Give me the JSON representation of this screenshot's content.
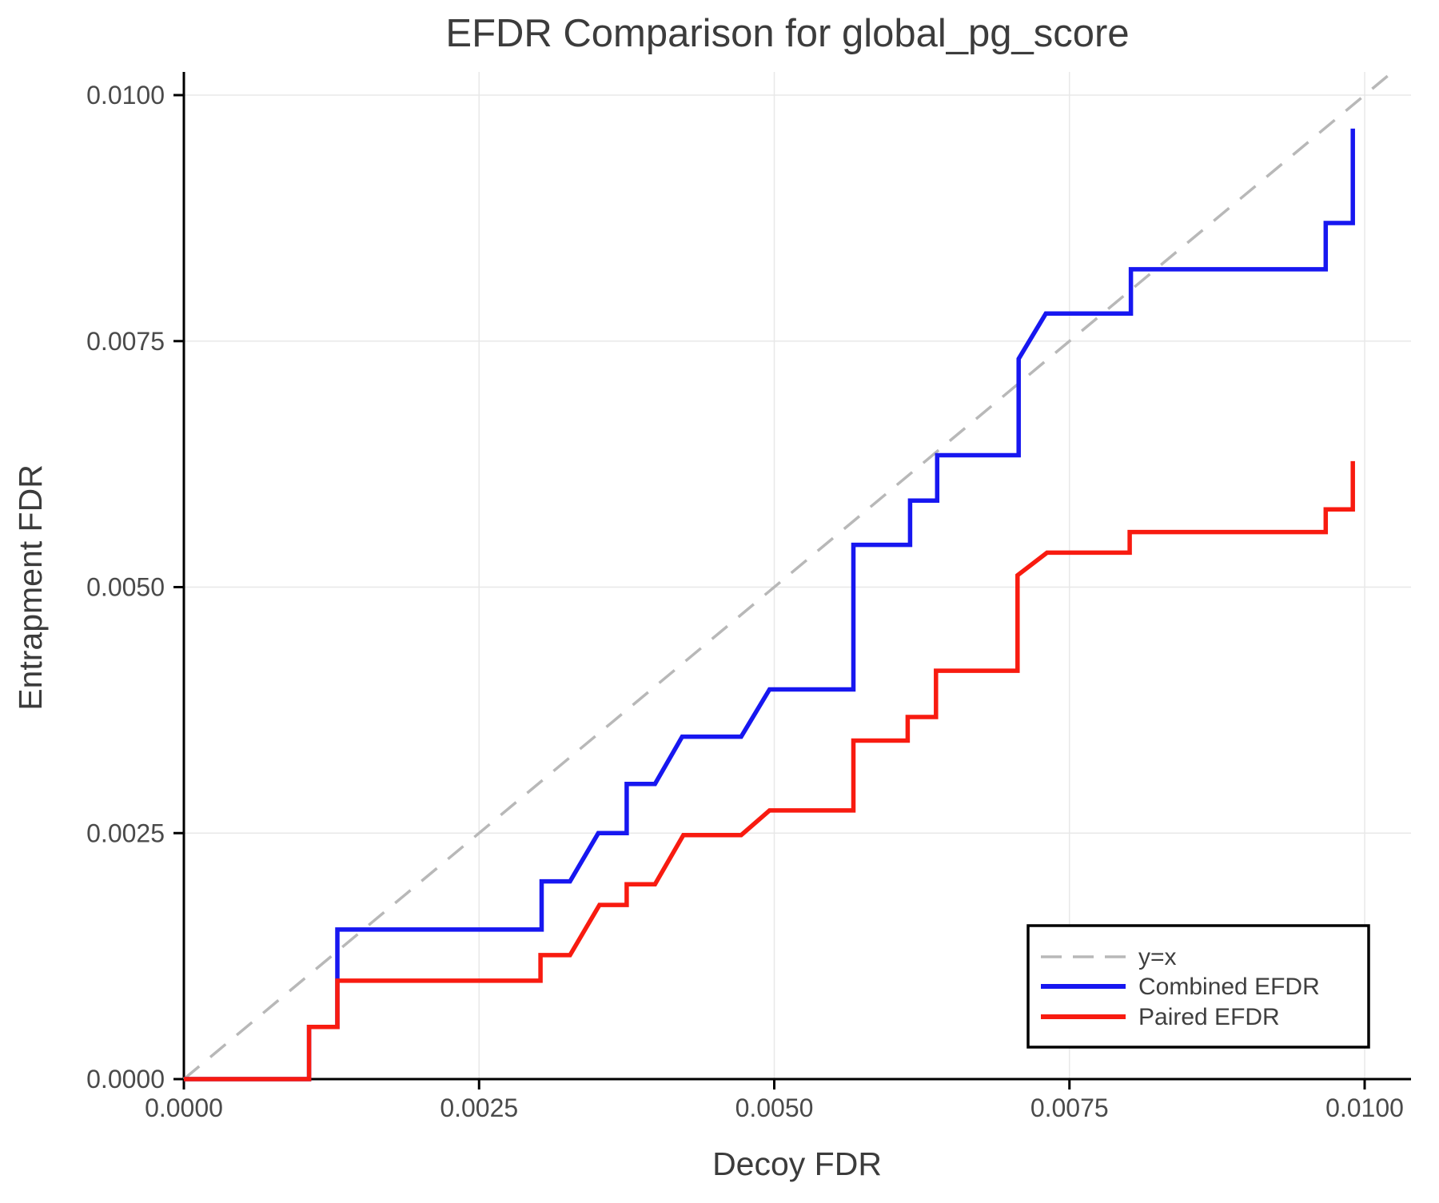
{
  "chart_data": {
    "type": "line",
    "title": "EFDR Comparison for global_pg_score",
    "xlabel": "Decoy FDR",
    "ylabel": "Entrapment FDR",
    "xlim": [
      0.0,
      0.0104
    ],
    "ylim": [
      0.0,
      0.01024
    ],
    "grid": true,
    "x_ticks": {
      "values": [
        0.0,
        0.0025,
        0.005,
        0.0075,
        0.01
      ],
      "labels": [
        "0.0000",
        "0.0025",
        "0.0050",
        "0.0075",
        "0.0100"
      ]
    },
    "y_ticks": {
      "values": [
        0.0,
        0.0025,
        0.005,
        0.0075,
        0.01
      ],
      "labels": [
        "0.0000",
        "0.0025",
        "0.0050",
        "0.0075",
        "0.0100"
      ]
    },
    "style": {
      "background": "#ffffff",
      "grid_color": "#e8e8e8",
      "spine_color": "#000000",
      "tick_color": "#000000",
      "text_color": "#4a4a4a",
      "title_color": "#3c3c3c"
    },
    "legend": {
      "position": "bottom-right",
      "border_color": "#000000",
      "background": "#ffffff",
      "entries": [
        "y=x",
        "Combined EFDR",
        "Paired EFDR"
      ]
    },
    "series": [
      {
        "name": "y=x",
        "color": "#b8b8b8",
        "style": "dashed",
        "width": 3.5,
        "points": [
          [
            0.0,
            0.0
          ],
          [
            0.01024,
            0.01024
          ]
        ]
      },
      {
        "name": "Combined EFDR",
        "color": "#1717f0",
        "style": "solid",
        "width": 5.5,
        "points": [
          [
            0.0,
            0.0
          ],
          [
            0.00106,
            0.0
          ],
          [
            0.00106,
            0.00053
          ],
          [
            0.0013,
            0.00053
          ],
          [
            0.0013,
            0.00152
          ],
          [
            0.00303,
            0.00152
          ],
          [
            0.00303,
            0.00201
          ],
          [
            0.00327,
            0.00201
          ],
          [
            0.00351,
            0.0025
          ],
          [
            0.00375,
            0.0025
          ],
          [
            0.00375,
            0.003
          ],
          [
            0.00399,
            0.003
          ],
          [
            0.00422,
            0.00348
          ],
          [
            0.00472,
            0.00348
          ],
          [
            0.00496,
            0.00396
          ],
          [
            0.00567,
            0.00396
          ],
          [
            0.00567,
            0.00543
          ],
          [
            0.00615,
            0.00543
          ],
          [
            0.00615,
            0.00588
          ],
          [
            0.00638,
            0.00588
          ],
          [
            0.00638,
            0.00634
          ],
          [
            0.00707,
            0.00634
          ],
          [
            0.00707,
            0.00732
          ],
          [
            0.0073,
            0.00778
          ],
          [
            0.00802,
            0.00778
          ],
          [
            0.00802,
            0.00823
          ],
          [
            0.00967,
            0.00823
          ],
          [
            0.00967,
            0.0087
          ],
          [
            0.0099,
            0.0087
          ],
          [
            0.0099,
            0.00966
          ]
        ]
      },
      {
        "name": "Paired EFDR",
        "color": "#f81b10",
        "style": "solid",
        "width": 5.5,
        "points": [
          [
            0.0,
            0.0
          ],
          [
            0.00106,
            0.0
          ],
          [
            0.00106,
            0.00053
          ],
          [
            0.0013,
            0.00053
          ],
          [
            0.0013,
            0.001
          ],
          [
            0.00302,
            0.001
          ],
          [
            0.00302,
            0.00126
          ],
          [
            0.00327,
            0.00126
          ],
          [
            0.00352,
            0.00177
          ],
          [
            0.00375,
            0.00177
          ],
          [
            0.00375,
            0.00198
          ],
          [
            0.00399,
            0.00198
          ],
          [
            0.00423,
            0.00248
          ],
          [
            0.00472,
            0.00248
          ],
          [
            0.00496,
            0.00273
          ],
          [
            0.00567,
            0.00273
          ],
          [
            0.00567,
            0.00344
          ],
          [
            0.00613,
            0.00344
          ],
          [
            0.00613,
            0.00368
          ],
          [
            0.00637,
            0.00368
          ],
          [
            0.00637,
            0.00415
          ],
          [
            0.00706,
            0.00415
          ],
          [
            0.00706,
            0.00512
          ],
          [
            0.00731,
            0.00535
          ],
          [
            0.00801,
            0.00535
          ],
          [
            0.00801,
            0.00556
          ],
          [
            0.00967,
            0.00556
          ],
          [
            0.00967,
            0.00579
          ],
          [
            0.0099,
            0.00579
          ],
          [
            0.0099,
            0.00628
          ]
        ]
      }
    ]
  }
}
